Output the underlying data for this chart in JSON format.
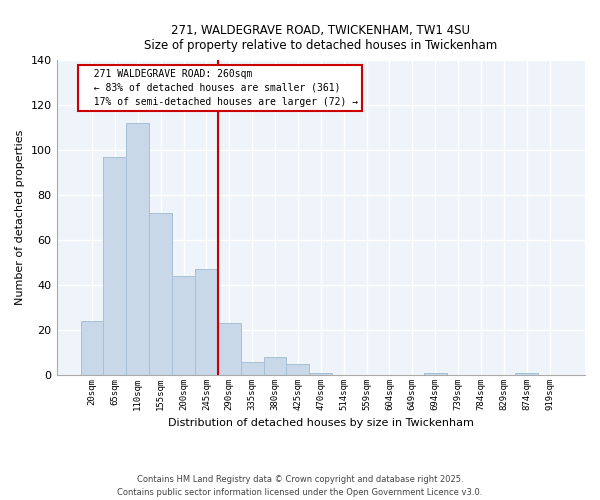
{
  "title1": "271, WALDEGRAVE ROAD, TWICKENHAM, TW1 4SU",
  "title2": "Size of property relative to detached houses in Twickenham",
  "bar_labels": [
    "20sqm",
    "65sqm",
    "110sqm",
    "155sqm",
    "200sqm",
    "245sqm",
    "290sqm",
    "335sqm",
    "380sqm",
    "425sqm",
    "470sqm",
    "514sqm",
    "559sqm",
    "604sqm",
    "649sqm",
    "694sqm",
    "739sqm",
    "784sqm",
    "829sqm",
    "874sqm",
    "919sqm"
  ],
  "bar_values": [
    24,
    97,
    112,
    72,
    44,
    47,
    23,
    6,
    8,
    5,
    1,
    0,
    0,
    0,
    0,
    1,
    0,
    0,
    0,
    1,
    0
  ],
  "bar_color": "#c8d8e8",
  "bar_edge_color": "#a8c0d4",
  "bg_color": "#eef4fa",
  "grid_color": "#ffffff",
  "ylabel": "Number of detached properties",
  "xlabel": "Distribution of detached houses by size in Twickenham",
  "ylim": [
    0,
    140
  ],
  "yticks": [
    0,
    20,
    40,
    60,
    80,
    100,
    120,
    140
  ],
  "red_line_x": 5.5,
  "annotation_title": "271 WALDEGRAVE ROAD: 260sqm",
  "annotation_line1": "← 83% of detached houses are smaller (361)",
  "annotation_line2": "17% of semi-detached houses are larger (72) →",
  "footer1": "Contains HM Land Registry data © Crown copyright and database right 2025.",
  "footer2": "Contains public sector information licensed under the Open Government Licence v3.0."
}
